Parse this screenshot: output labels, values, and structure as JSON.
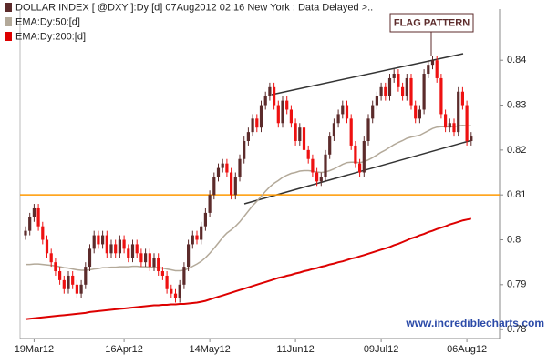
{
  "chart_data": {
    "type": "candlestick",
    "categories": [
      null,
      null,
      "19Mar12",
      null,
      null,
      null,
      null,
      null,
      null,
      null,
      null,
      null,
      null,
      null,
      null,
      null,
      null,
      null,
      null,
      null,
      null,
      null,
      null,
      "16Apr12",
      null,
      null,
      null,
      null,
      null,
      null,
      null,
      null,
      null,
      null,
      null,
      null,
      null,
      null,
      null,
      null,
      null,
      null,
      null,
      "14May12",
      null,
      null,
      null,
      null,
      null,
      null,
      null,
      null,
      null,
      null,
      null,
      null,
      null,
      null,
      null,
      null,
      null,
      null,
      null,
      "11Jun12",
      null,
      null,
      null,
      null,
      null,
      null,
      null,
      null,
      null,
      null,
      null,
      null,
      null,
      null,
      null,
      null,
      null,
      null,
      null,
      "09Jul12",
      null,
      null,
      null,
      null,
      null,
      null,
      null,
      null,
      null,
      null,
      null,
      null,
      null,
      null,
      null,
      null,
      null,
      null,
      null,
      "06Aug12",
      null
    ],
    "candles": {
      "name": "DOLLAR INDEX [ @DXY ]:Dy:[d]  07Aug2012 02:16 New York : Data Delayed >..",
      "up_color": "#5c2b2b",
      "down_color": "#ee1111",
      "open": [
        0.801,
        0.802,
        0.805,
        0.807,
        0.803,
        0.8,
        0.797,
        0.795,
        0.793,
        0.791,
        0.789,
        0.792,
        0.79,
        0.788,
        0.79,
        0.794,
        0.798,
        0.801,
        0.799,
        0.801,
        0.797,
        0.799,
        0.797,
        0.8,
        0.798,
        0.796,
        0.799,
        0.797,
        0.795,
        0.797,
        0.794,
        0.796,
        0.793,
        0.792,
        0.789,
        0.788,
        0.787,
        0.79,
        0.794,
        0.799,
        0.801,
        0.8,
        0.803,
        0.806,
        0.81,
        0.814,
        0.816,
        0.817,
        0.815,
        0.81,
        0.814,
        0.818,
        0.822,
        0.824,
        0.827,
        0.825,
        0.83,
        0.832,
        0.834,
        0.83,
        0.826,
        0.831,
        0.829,
        0.826,
        0.822,
        0.825,
        0.82,
        0.818,
        0.815,
        0.813,
        0.814,
        0.819,
        0.823,
        0.826,
        0.828,
        0.83,
        0.827,
        0.821,
        0.817,
        0.815,
        0.822,
        0.827,
        0.83,
        0.832,
        0.834,
        0.832,
        0.836,
        0.837,
        0.834,
        0.832,
        0.836,
        0.83,
        0.827,
        0.829,
        0.837,
        0.839,
        0.84,
        0.836,
        0.828,
        0.825,
        0.826,
        0.824,
        0.833,
        0.83,
        0.822
      ],
      "high": [
        0.803,
        0.806,
        0.808,
        0.808,
        0.804,
        0.801,
        0.798,
        0.796,
        0.794,
        0.792,
        0.793,
        0.793,
        0.791,
        0.791,
        0.795,
        0.799,
        0.802,
        0.802,
        0.802,
        0.802,
        0.8,
        0.8,
        0.801,
        0.801,
        0.799,
        0.8,
        0.8,
        0.798,
        0.798,
        0.798,
        0.797,
        0.797,
        0.794,
        0.793,
        0.79,
        0.789,
        0.791,
        0.795,
        0.8,
        0.802,
        0.802,
        0.804,
        0.807,
        0.811,
        0.815,
        0.817,
        0.818,
        0.818,
        0.816,
        0.815,
        0.819,
        0.823,
        0.825,
        0.828,
        0.828,
        0.831,
        0.833,
        0.835,
        0.835,
        0.831,
        0.832,
        0.832,
        0.83,
        0.827,
        0.826,
        0.826,
        0.821,
        0.819,
        0.816,
        0.815,
        0.82,
        0.824,
        0.827,
        0.829,
        0.831,
        0.831,
        0.828,
        0.822,
        0.818,
        0.823,
        0.828,
        0.831,
        0.833,
        0.835,
        0.835,
        0.837,
        0.838,
        0.838,
        0.835,
        0.837,
        0.837,
        0.831,
        0.83,
        0.838,
        0.84,
        0.841,
        0.841,
        0.837,
        0.829,
        0.827,
        0.827,
        0.834,
        0.834,
        0.831,
        0.824
      ],
      "low": [
        0.8,
        0.801,
        0.804,
        0.802,
        0.799,
        0.796,
        0.794,
        0.792,
        0.79,
        0.788,
        0.788,
        0.789,
        0.787,
        0.787,
        0.789,
        0.793,
        0.797,
        0.798,
        0.798,
        0.796,
        0.796,
        0.796,
        0.796,
        0.797,
        0.795,
        0.795,
        0.796,
        0.794,
        0.794,
        0.793,
        0.793,
        0.792,
        0.791,
        0.788,
        0.787,
        0.786,
        0.786,
        0.789,
        0.793,
        0.798,
        0.799,
        0.799,
        0.802,
        0.805,
        0.809,
        0.813,
        0.815,
        0.814,
        0.809,
        0.809,
        0.813,
        0.817,
        0.821,
        0.823,
        0.824,
        0.824,
        0.829,
        0.831,
        0.829,
        0.825,
        0.825,
        0.828,
        0.825,
        0.821,
        0.821,
        0.819,
        0.817,
        0.814,
        0.812,
        0.812,
        0.813,
        0.818,
        0.822,
        0.825,
        0.827,
        0.826,
        0.82,
        0.816,
        0.814,
        0.814,
        0.821,
        0.826,
        0.829,
        0.831,
        0.831,
        0.831,
        0.835,
        0.833,
        0.831,
        0.831,
        0.829,
        0.826,
        0.826,
        0.828,
        0.836,
        0.838,
        0.835,
        0.827,
        0.824,
        0.824,
        0.823,
        0.823,
        0.829,
        0.821,
        0.821
      ],
      "close": [
        0.802,
        0.805,
        0.807,
        0.803,
        0.8,
        0.797,
        0.795,
        0.793,
        0.791,
        0.789,
        0.792,
        0.79,
        0.788,
        0.79,
        0.794,
        0.798,
        0.801,
        0.799,
        0.801,
        0.797,
        0.799,
        0.797,
        0.8,
        0.798,
        0.796,
        0.799,
        0.797,
        0.795,
        0.797,
        0.794,
        0.796,
        0.793,
        0.792,
        0.789,
        0.788,
        0.787,
        0.79,
        0.794,
        0.799,
        0.801,
        0.8,
        0.803,
        0.806,
        0.81,
        0.814,
        0.816,
        0.817,
        0.815,
        0.81,
        0.814,
        0.818,
        0.822,
        0.824,
        0.827,
        0.825,
        0.83,
        0.832,
        0.834,
        0.83,
        0.826,
        0.831,
        0.829,
        0.826,
        0.822,
        0.825,
        0.82,
        0.818,
        0.815,
        0.813,
        0.814,
        0.819,
        0.823,
        0.826,
        0.828,
        0.83,
        0.827,
        0.821,
        0.817,
        0.815,
        0.822,
        0.827,
        0.83,
        0.832,
        0.834,
        0.832,
        0.836,
        0.837,
        0.834,
        0.832,
        0.836,
        0.83,
        0.827,
        0.829,
        0.837,
        0.839,
        0.84,
        0.836,
        0.828,
        0.825,
        0.826,
        0.824,
        0.833,
        0.83,
        0.822,
        0.823
      ]
    },
    "series": [
      {
        "name": "EMA:Dy:50:[d]",
        "color": "#b3a999",
        "values": [
          0.7945,
          0.7945,
          0.7946,
          0.7946,
          0.7945,
          0.7944,
          0.7943,
          0.7942,
          0.794,
          0.7938,
          0.7937,
          0.7935,
          0.7933,
          0.7932,
          0.7932,
          0.7933,
          0.7935,
          0.7936,
          0.7938,
          0.7938,
          0.7939,
          0.7939,
          0.794,
          0.794,
          0.794,
          0.7941,
          0.7941,
          0.794,
          0.794,
          0.7939,
          0.7939,
          0.7938,
          0.7937,
          0.7935,
          0.7933,
          0.7931,
          0.7931,
          0.7932,
          0.7936,
          0.7941,
          0.7946,
          0.7952,
          0.796,
          0.797,
          0.7981,
          0.7993,
          0.8005,
          0.8015,
          0.8022,
          0.803,
          0.804,
          0.8052,
          0.8064,
          0.8076,
          0.8086,
          0.8097,
          0.8108,
          0.8118,
          0.8126,
          0.8132,
          0.8139,
          0.8144,
          0.8148,
          0.815,
          0.8153,
          0.8154,
          0.8154,
          0.8153,
          0.8151,
          0.815,
          0.8151,
          0.8154,
          0.8158,
          0.8163,
          0.8168,
          0.8172,
          0.8173,
          0.8173,
          0.8172,
          0.8174,
          0.8178,
          0.8183,
          0.8189,
          0.8195,
          0.82,
          0.8206,
          0.8212,
          0.8217,
          0.8221,
          0.8226,
          0.8229,
          0.8231,
          0.8233,
          0.8238,
          0.8243,
          0.8248,
          0.8251,
          0.8252,
          0.8252,
          0.8252,
          0.8252,
          0.8254,
          0.8255,
          0.8254,
          0.8254
        ]
      },
      {
        "name": "EMA:Dy:200:[d]",
        "color": "#dd0000",
        "values": [
          0.7823,
          0.7824,
          0.7825,
          0.7826,
          0.7827,
          0.7828,
          0.7829,
          0.783,
          0.7831,
          0.7832,
          0.7833,
          0.7834,
          0.7835,
          0.7836,
          0.7837,
          0.7839,
          0.784,
          0.7841,
          0.7842,
          0.7843,
          0.7844,
          0.7845,
          0.7846,
          0.7847,
          0.7848,
          0.7849,
          0.785,
          0.7851,
          0.7852,
          0.7853,
          0.7854,
          0.7854,
          0.7855,
          0.7855,
          0.7856,
          0.7856,
          0.7857,
          0.7857,
          0.7858,
          0.7859,
          0.786,
          0.7862,
          0.7864,
          0.7867,
          0.787,
          0.7873,
          0.7876,
          0.7879,
          0.7882,
          0.7885,
          0.7888,
          0.7891,
          0.7894,
          0.7897,
          0.79,
          0.7903,
          0.7906,
          0.7909,
          0.7912,
          0.7915,
          0.7917,
          0.792,
          0.7922,
          0.7925,
          0.7927,
          0.793,
          0.7932,
          0.7935,
          0.7937,
          0.794,
          0.7942,
          0.7945,
          0.7947,
          0.795,
          0.7952,
          0.7955,
          0.7958,
          0.796,
          0.7963,
          0.7966,
          0.7969,
          0.7972,
          0.7975,
          0.7978,
          0.7981,
          0.7984,
          0.7988,
          0.7991,
          0.7995,
          0.7999,
          0.8003,
          0.8006,
          0.801,
          0.8013,
          0.8017,
          0.802,
          0.8024,
          0.8027,
          0.803,
          0.8034,
          0.8037,
          0.804,
          0.8043,
          0.8045,
          0.8047
        ]
      }
    ],
    "hline": {
      "value": 0.81,
      "color": "#ff9900"
    },
    "annotation": "FLAG PATTERN",
    "watermark": "www.incrediblecharts.com",
    "ylim": [
      0.778,
      0.8514
    ],
    "yticks": [
      0.78,
      0.79,
      0.8,
      0.81,
      0.82,
      0.83,
      0.84
    ]
  }
}
